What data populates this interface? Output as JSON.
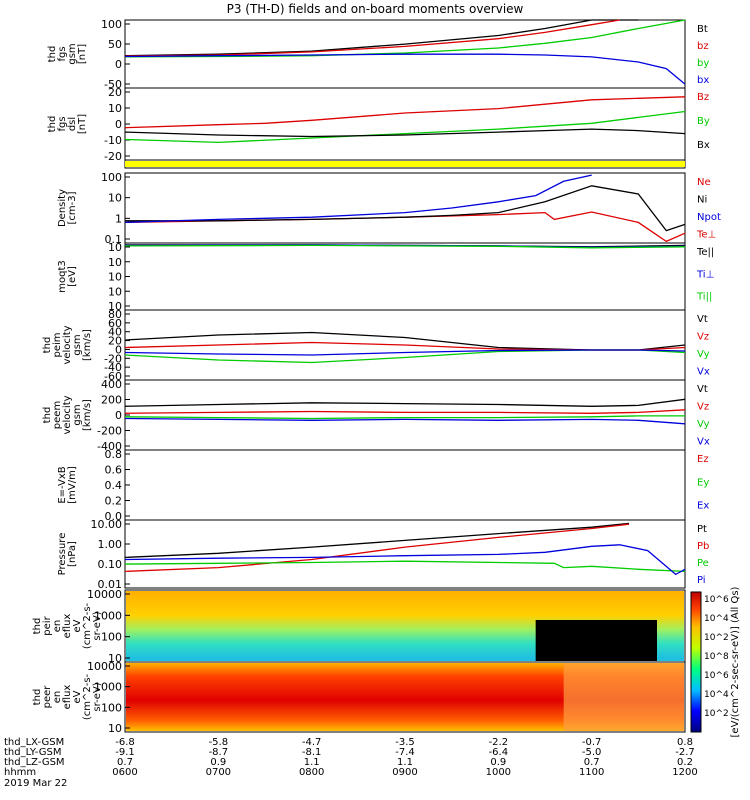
{
  "title": "P3 (TH-D) fields and on-board moments overview",
  "footer": {
    "date": "2019 Mar 22",
    "rows": [
      {
        "label": "thd_LX-GSM",
        "values": [
          "-6.8",
          "-5.8",
          "-4.7",
          "-3.5",
          "-2.2",
          "-0.7",
          "0.8"
        ]
      },
      {
        "label": "thd_LY-GSM",
        "values": [
          "-9.1",
          "-8.7",
          "-8.1",
          "-7.4",
          "-6.4",
          "-5.0",
          "-2.7"
        ]
      },
      {
        "label": "thd_LZ-GSM",
        "values": [
          "0.7",
          "0.9",
          "1.1",
          "1.1",
          "0.9",
          "0.7",
          "0.2"
        ]
      },
      {
        "label": "hhmm",
        "values": [
          "0600",
          "0700",
          "0800",
          "0900",
          "1000",
          "1100",
          "1200"
        ]
      }
    ]
  },
  "colorbar_label": "[eV/(cm^2-sec-sr-eV)] (All Qs)",
  "colorbar_ticks": [
    "10^6",
    "10^4",
    "10^2",
    "10^8",
    "10^6",
    "10^4",
    "10^2"
  ],
  "colors": {
    "black": "#000000",
    "red": "#dd0000",
    "green": "#00cc00",
    "blue": "#0000dd",
    "yellow": "#ffff00"
  },
  "chart_data": [
    {
      "type": "line",
      "ylabel": [
        "thd",
        "fgs",
        "gsm",
        "[nT]"
      ],
      "yticks": [
        "100",
        "50",
        "0",
        "-50"
      ],
      "ylim": [
        -75,
        100
      ],
      "legend": [
        {
          "name": "Bt",
          "color": "#000000"
        },
        {
          "name": "bz",
          "color": "#dd0000"
        },
        {
          "name": "by",
          "color": "#00cc00"
        },
        {
          "name": "bx",
          "color": "#0000dd"
        }
      ],
      "series": [
        {
          "name": "Bt",
          "x": [
            6,
            7,
            8,
            9,
            10,
            10.5,
            11,
            11.5
          ],
          "y": [
            8,
            12,
            20,
            38,
            60,
            78,
            100,
            120
          ]
        },
        {
          "name": "bz",
          "x": [
            6,
            7,
            8,
            9,
            10,
            10.5,
            11,
            11.3
          ],
          "y": [
            7,
            10,
            18,
            32,
            52,
            68,
            88,
            100
          ]
        },
        {
          "name": "by",
          "x": [
            6,
            7,
            8,
            9,
            10,
            10.5,
            11,
            11.5,
            12
          ],
          "y": [
            5,
            6,
            8,
            15,
            28,
            40,
            55,
            78,
            100
          ]
        },
        {
          "name": "bx",
          "x": [
            6,
            7,
            8,
            9,
            10,
            10.5,
            11,
            11.5,
            11.8,
            12
          ],
          "y": [
            6,
            8,
            10,
            12,
            12,
            10,
            5,
            -8,
            -25,
            -65
          ]
        }
      ]
    },
    {
      "type": "line",
      "ylabel": [
        "thd",
        "fgs",
        "dsl",
        "[nT]"
      ],
      "yticks": [
        "20",
        "10",
        "0",
        "-10",
        "-20"
      ],
      "ylim": [
        -27,
        22
      ],
      "legend": [
        {
          "name": "Bz",
          "color": "#dd0000"
        },
        {
          "name": "By",
          "color": "#00cc00"
        },
        {
          "name": "Bx",
          "color": "#000000"
        }
      ],
      "series": [
        {
          "name": "Bz",
          "x": [
            6,
            7,
            7.5,
            8,
            9,
            10,
            10.5,
            11,
            11.5,
            12
          ],
          "y": [
            -5,
            -3,
            -2,
            0,
            5,
            8,
            11,
            14,
            15,
            16
          ]
        },
        {
          "name": "By",
          "x": [
            6,
            7,
            8,
            9,
            10,
            10.5,
            11,
            11.5,
            12
          ],
          "y": [
            -13,
            -15,
            -12,
            -9,
            -6,
            -4,
            -2,
            2,
            6
          ]
        },
        {
          "name": "Bx",
          "x": [
            6,
            7,
            8,
            9,
            10,
            10.5,
            11,
            11.5,
            12
          ],
          "y": [
            -8,
            -10,
            -11,
            -10,
            -8,
            -7,
            -6,
            -7,
            -9
          ]
        }
      ]
    },
    {
      "type": "area",
      "ylabel": [],
      "yticks": [],
      "legend": [],
      "series": [
        {
          "name": "",
          "x": [
            6,
            12
          ],
          "y": [
            1,
            1
          ]
        }
      ]
    },
    {
      "type": "line",
      "ylabel": [
        "Density",
        "[cm-3]"
      ],
      "yticks": [
        "100",
        "10",
        "1",
        "0.1"
      ],
      "ylim": [
        -1.3,
        2.1
      ],
      "log": true,
      "legend": [
        {
          "name": "Ne",
          "color": "#dd0000"
        },
        {
          "name": "Ni",
          "color": "#000000"
        },
        {
          "name": "Npot",
          "color": "#0000dd"
        },
        {
          "name": "Te⊥",
          "color": "#dd0000"
        }
      ],
      "series": [
        {
          "name": "Ne",
          "x": [
            6,
            7,
            8,
            9,
            10,
            10.5,
            10.6,
            11,
            11.5,
            11.8,
            12
          ],
          "y": [
            0.5,
            0.6,
            0.7,
            0.9,
            1.2,
            1.5,
            0.7,
            1.6,
            0.5,
            0.06,
            0.15
          ]
        },
        {
          "name": "Ni",
          "x": [
            6,
            7,
            8,
            9,
            9.5,
            10,
            10.5,
            11,
            11.5,
            11.8,
            12
          ],
          "y": [
            0.6,
            0.6,
            0.7,
            0.9,
            1.1,
            1.5,
            5,
            30,
            12,
            0.2,
            0.4
          ]
        },
        {
          "name": "Npot",
          "x": [
            6,
            7,
            8,
            9,
            9.5,
            10,
            10.4,
            10.7,
            11
          ],
          "y": [
            0.5,
            0.7,
            0.9,
            1.5,
            2.5,
            5,
            10,
            50,
            100
          ]
        }
      ]
    },
    {
      "type": "line",
      "ylabel": [
        "moqt3",
        "[eV]"
      ],
      "yticks": [
        "10",
        "10",
        "10",
        "10",
        "10"
      ],
      "ylim": [
        -10,
        4
      ],
      "log": true,
      "legend": [
        {
          "name": "Te||",
          "color": "#000000"
        },
        {
          "name": "Ti⊥",
          "color": "#0000dd"
        },
        {
          "name": "Ti||",
          "color": "#00cc00"
        }
      ],
      "series": [
        {
          "name": "Te||",
          "x": [
            6,
            8,
            10,
            11,
            12
          ],
          "y": [
            3.6,
            3.6,
            3.4,
            3.2,
            3.5
          ]
        },
        {
          "name": "Ti⊥",
          "x": [
            6,
            8,
            10,
            11,
            12
          ],
          "y": [
            3.5,
            3.6,
            3.4,
            3.1,
            3.3
          ]
        },
        {
          "name": "Ti||",
          "x": [
            6,
            8,
            10,
            11,
            12
          ],
          "y": [
            3.4,
            3.5,
            3.3,
            3.0,
            3.2
          ]
        }
      ]
    },
    {
      "type": "line",
      "ylabel": [
        "thd",
        "peim",
        "velocity",
        "gsm",
        "[km/s]"
      ],
      "yticks": [
        "80",
        "60",
        "40",
        "20",
        "0",
        "-20",
        "-40",
        "-60"
      ],
      "ylim": [
        -60,
        80
      ],
      "legend": [
        {
          "name": "Vt",
          "color": "#000000"
        },
        {
          "name": "Vz",
          "color": "#dd0000"
        },
        {
          "name": "Vy",
          "color": "#00cc00"
        },
        {
          "name": "Vx",
          "color": "#0000dd"
        }
      ],
      "series": [
        {
          "name": "Vt",
          "x": [
            6,
            7,
            8,
            9,
            10,
            11,
            11.5,
            12
          ],
          "y": [
            20,
            30,
            35,
            25,
            5,
            0,
            0,
            10
          ]
        },
        {
          "name": "Vz",
          "x": [
            6,
            7,
            8,
            9,
            10,
            11,
            11.5,
            12
          ],
          "y": [
            5,
            10,
            15,
            10,
            2,
            0,
            0,
            5
          ]
        },
        {
          "name": "Vy",
          "x": [
            6,
            7,
            8,
            9,
            10,
            11,
            11.5,
            12
          ],
          "y": [
            -10,
            -20,
            -25,
            -15,
            -3,
            0,
            0,
            -5
          ]
        },
        {
          "name": "Vx",
          "x": [
            6,
            7,
            8,
            9,
            10,
            11,
            11.5,
            12
          ],
          "y": [
            -5,
            -8,
            -10,
            -5,
            -1,
            0,
            0,
            -2
          ]
        }
      ]
    },
    {
      "type": "line",
      "ylabel": [
        "thd",
        "peem",
        "velocity",
        "gsm",
        "[km/s]"
      ],
      "yticks": [
        "400",
        "200",
        "0",
        "-200",
        "-400"
      ],
      "ylim": [
        -400,
        400
      ],
      "legend": [
        {
          "name": "Vt",
          "color": "#000000"
        },
        {
          "name": "Vz",
          "color": "#dd0000"
        },
        {
          "name": "Vy",
          "color": "#00cc00"
        },
        {
          "name": "Vx",
          "color": "#0000dd"
        }
      ],
      "series": [
        {
          "name": "Vt",
          "x": [
            6,
            7,
            8,
            9,
            10,
            11,
            11.5,
            12
          ],
          "y": [
            100,
            120,
            140,
            130,
            120,
            100,
            110,
            180
          ]
        },
        {
          "name": "Vz",
          "x": [
            6,
            7,
            8,
            9,
            10,
            11,
            11.5,
            12
          ],
          "y": [
            20,
            30,
            40,
            30,
            30,
            20,
            30,
            60
          ]
        },
        {
          "name": "Vy",
          "x": [
            6,
            7,
            8,
            9,
            10,
            11,
            11.5,
            12
          ],
          "y": [
            -20,
            -30,
            -40,
            -30,
            -30,
            -20,
            -10,
            -10
          ]
        },
        {
          "name": "Vx",
          "x": [
            6,
            7,
            8,
            9,
            10,
            11,
            11.5,
            12
          ],
          "y": [
            -40,
            -50,
            -60,
            -50,
            -60,
            -50,
            -60,
            -100
          ]
        }
      ]
    },
    {
      "type": "line",
      "ylabel": [
        "E=-VxB",
        "[mV/m]"
      ],
      "yticks": [
        "0.8",
        "0.6",
        "0.4",
        "0.2",
        "0.0"
      ],
      "ylim": [
        0,
        1
      ],
      "legend": [
        {
          "name": "Ez",
          "color": "#dd0000"
        },
        {
          "name": "Ey",
          "color": "#00cc00"
        },
        {
          "name": "Ex",
          "color": "#0000dd"
        }
      ],
      "series": []
    },
    {
      "type": "line",
      "ylabel": [
        "Pressure",
        "[nPa]"
      ],
      "yticks": [
        "10.00",
        "1.00",
        "0.10",
        "0.01"
      ],
      "ylim": [
        -2.5,
        1.5
      ],
      "log": true,
      "legend": [
        {
          "name": "Pt",
          "color": "#000000"
        },
        {
          "name": "Pb",
          "color": "#dd0000"
        },
        {
          "name": "Pe",
          "color": "#00cc00"
        },
        {
          "name": "Pi",
          "color": "#0000dd"
        }
      ],
      "series": [
        {
          "name": "Pt",
          "x": [
            6,
            7,
            8,
            9,
            10,
            11,
            11.4
          ],
          "y": [
            0.2,
            0.35,
            0.8,
            2,
            5,
            12,
            20
          ]
        },
        {
          "name": "Pb",
          "x": [
            6,
            7,
            8,
            9,
            10,
            11,
            11.4
          ],
          "y": [
            0.03,
            0.05,
            0.15,
            0.8,
            3,
            10,
            18
          ]
        },
        {
          "name": "Pe",
          "x": [
            6,
            7,
            8,
            9,
            10,
            10.6,
            10.7,
            11,
            11.5,
            12
          ],
          "y": [
            0.08,
            0.09,
            0.1,
            0.12,
            0.1,
            0.09,
            0.05,
            0.06,
            0.04,
            0.03
          ]
        },
        {
          "name": "Pi",
          "x": [
            6,
            7,
            8,
            9,
            10,
            10.5,
            11,
            11.3,
            11.6,
            11.9,
            12
          ],
          "y": [
            0.15,
            0.18,
            0.2,
            0.25,
            0.3,
            0.4,
            0.9,
            1.1,
            0.5,
            0.02,
            0.04
          ]
        }
      ]
    },
    {
      "type": "heatmap",
      "ylabel": [
        "thd",
        "peir",
        "en",
        "eflux",
        "eV",
        "(cm^2-s-",
        "sr-eV)"
      ],
      "yticks": [
        "10000",
        "1000",
        "100",
        "10"
      ],
      "ylim": [
        5,
        20000
      ],
      "log": true,
      "legend": [],
      "series": []
    },
    {
      "type": "heatmap",
      "ylabel": [
        "thd",
        "peer",
        "en",
        "eflux",
        "eV",
        "(cm^2-s-",
        "sr-eV)"
      ],
      "yticks": [
        "10000",
        "1000",
        "100",
        "10"
      ],
      "ylim": [
        5,
        20000
      ],
      "log": true,
      "legend": [],
      "series": []
    }
  ]
}
